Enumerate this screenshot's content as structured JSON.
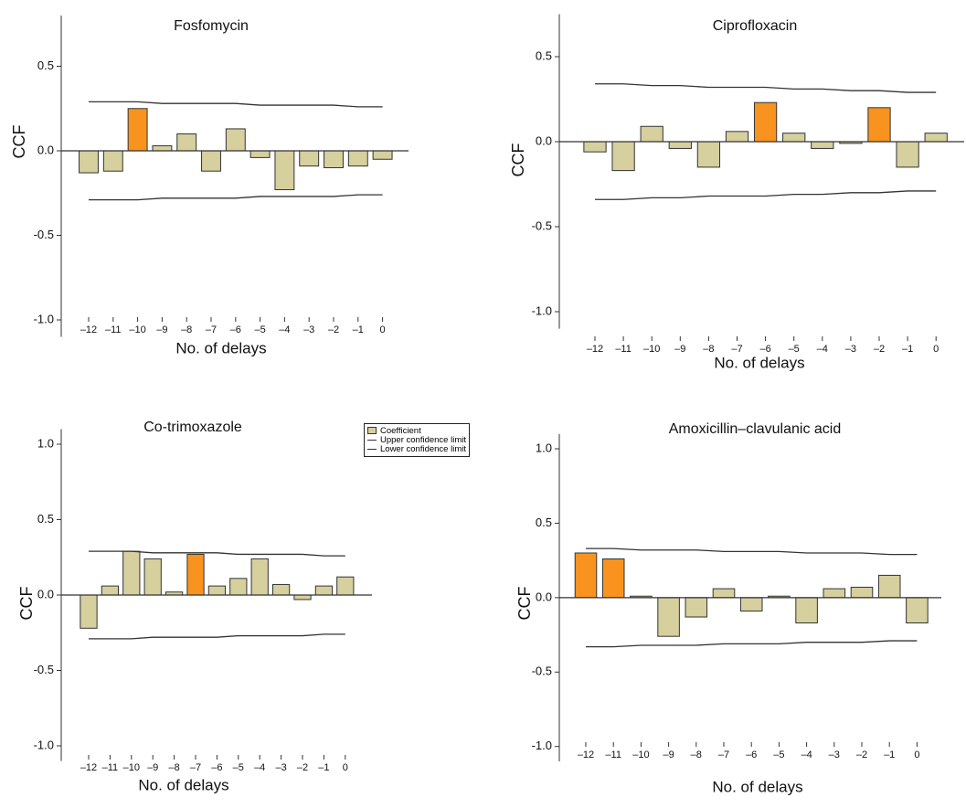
{
  "chart_data": [
    {
      "type": "bar",
      "title": "Fosfomycin",
      "x_label": "No. of delays",
      "y_label": "CCF",
      "categories": [
        "–12",
        "–11",
        "–10",
        "–9",
        "–8",
        "–7",
        "–6",
        "–5",
        "–4",
        "–3",
        "–2",
        "–1",
        "0"
      ],
      "series": [
        {
          "name": "Coefficient",
          "kind": "bar",
          "color": "#d6cf9e",
          "colors": [
            "#d6cf9e",
            "#d6cf9e",
            "#f7931e",
            "#d6cf9e",
            "#d6cf9e",
            "#d6cf9e",
            "#d6cf9e",
            "#d6cf9e",
            "#d6cf9e",
            "#d6cf9e",
            "#d6cf9e",
            "#d6cf9e",
            "#d6cf9e"
          ],
          "values": [
            -0.13,
            -0.12,
            0.25,
            0.03,
            0.1,
            -0.12,
            0.13,
            -0.04,
            -0.23,
            -0.09,
            -0.1,
            -0.09,
            -0.05
          ]
        },
        {
          "name": "Upper confidence limit",
          "kind": "line",
          "color": "#333333",
          "values": [
            0.29,
            0.29,
            0.29,
            0.28,
            0.28,
            0.28,
            0.28,
            0.27,
            0.27,
            0.27,
            0.27,
            0.26,
            0.26
          ]
        },
        {
          "name": "Lower confidence limit",
          "kind": "line",
          "color": "#333333",
          "values": [
            -0.29,
            -0.29,
            -0.29,
            -0.28,
            -0.28,
            -0.28,
            -0.28,
            -0.27,
            -0.27,
            -0.27,
            -0.27,
            -0.26,
            -0.26
          ]
        }
      ],
      "ylim": [
        -1.1,
        0.8
      ],
      "yticks": [
        0.5,
        {
          "value": 0,
          "label": "0.0"
        },
        -0.5,
        {
          "value": -1,
          "label": "-1.0"
        }
      ]
    },
    {
      "type": "bar",
      "title": "Ciprofloxacin",
      "x_label": "No. of delays",
      "y_label": "CCF",
      "categories": [
        "–12",
        "–11",
        "–10",
        "–9",
        "–8",
        "–7",
        "–6",
        "–5",
        "–4",
        "–3",
        "–2",
        "–1",
        "0"
      ],
      "series": [
        {
          "name": "Coefficient",
          "kind": "bar",
          "color": "#d6cf9e",
          "colors": [
            "#d6cf9e",
            "#d6cf9e",
            "#d6cf9e",
            "#d6cf9e",
            "#d6cf9e",
            "#d6cf9e",
            "#f7931e",
            "#d6cf9e",
            "#d6cf9e",
            "#d6cf9e",
            "#f7931e",
            "#d6cf9e",
            "#d6cf9e"
          ],
          "values": [
            -0.06,
            -0.17,
            0.09,
            -0.04,
            -0.15,
            0.06,
            0.23,
            0.05,
            -0.04,
            -0.01,
            0.2,
            -0.15,
            0.05
          ]
        },
        {
          "name": "Upper confidence limit",
          "kind": "line",
          "color": "#333333",
          "values": [
            0.34,
            0.34,
            0.33,
            0.33,
            0.32,
            0.32,
            0.32,
            0.31,
            0.31,
            0.3,
            0.3,
            0.29,
            0.29
          ]
        },
        {
          "name": "Lower confidence limit",
          "kind": "line",
          "color": "#333333",
          "values": [
            -0.34,
            -0.34,
            -0.33,
            -0.33,
            -0.32,
            -0.32,
            -0.32,
            -0.31,
            -0.31,
            -0.3,
            -0.3,
            -0.29,
            -0.29
          ]
        }
      ],
      "ylim": [
        -1.1,
        0.75
      ],
      "yticks": [
        0.5,
        {
          "value": 0,
          "label": "0.0"
        },
        -0.5,
        {
          "value": -1,
          "label": "-1.0"
        }
      ]
    },
    {
      "type": "bar",
      "title": "Co-trimoxazole",
      "x_label": "No. of delays",
      "y_label": "CCF",
      "legend": "upper right",
      "categories": [
        "–12",
        "–11",
        "–10",
        "–9",
        "–8",
        "–7",
        "–6",
        "–5",
        "–4",
        "–3",
        "–2",
        "–1",
        "0"
      ],
      "series": [
        {
          "name": "Coefficient",
          "kind": "bar",
          "color": "#d6cf9e",
          "colors": [
            "#d6cf9e",
            "#d6cf9e",
            "#d6cf9e",
            "#d6cf9e",
            "#d6cf9e",
            "#f7931e",
            "#d6cf9e",
            "#d6cf9e",
            "#d6cf9e",
            "#d6cf9e",
            "#d6cf9e",
            "#d6cf9e",
            "#d6cf9e"
          ],
          "values": [
            -0.22,
            0.06,
            0.29,
            0.24,
            0.02,
            0.27,
            0.06,
            0.11,
            0.24,
            0.07,
            -0.03,
            0.06,
            0.12
          ]
        },
        {
          "name": "Upper confidence limit",
          "kind": "line",
          "color": "#333333",
          "values": [
            0.29,
            0.29,
            0.29,
            0.28,
            0.28,
            0.28,
            0.28,
            0.27,
            0.27,
            0.27,
            0.27,
            0.26,
            0.26
          ]
        },
        {
          "name": "Lower confidence limit",
          "kind": "line",
          "color": "#333333",
          "values": [
            -0.29,
            -0.29,
            -0.29,
            -0.28,
            -0.28,
            -0.28,
            -0.28,
            -0.27,
            -0.27,
            -0.27,
            -0.27,
            -0.26,
            -0.26
          ]
        }
      ],
      "ylim": [
        -1.1,
        1.1
      ],
      "yticks": [
        {
          "value": 1,
          "label": "1.0"
        },
        0.5,
        {
          "value": 0,
          "label": "0.0"
        },
        -0.5,
        {
          "value": -1,
          "label": "-1.0"
        }
      ]
    },
    {
      "type": "bar",
      "title": "Amoxicillin–clavulanic acid",
      "x_label": "No. of delays",
      "y_label": "CCF",
      "categories": [
        "–12",
        "–11",
        "–10",
        "–9",
        "–8",
        "–7",
        "–6",
        "–5",
        "–4",
        "–3",
        "–2",
        "–1",
        "0"
      ],
      "series": [
        {
          "name": "Coefficient",
          "kind": "bar",
          "color": "#d6cf9e",
          "colors": [
            "#f7931e",
            "#f7931e",
            "#d6cf9e",
            "#d6cf9e",
            "#d6cf9e",
            "#d6cf9e",
            "#d6cf9e",
            "#d6cf9e",
            "#d6cf9e",
            "#d6cf9e",
            "#d6cf9e",
            "#d6cf9e",
            "#d6cf9e"
          ],
          "values": [
            0.3,
            0.26,
            0.01,
            -0.26,
            -0.13,
            0.06,
            -0.09,
            0.01,
            -0.17,
            0.06,
            0.07,
            0.15,
            -0.17
          ]
        },
        {
          "name": "Upper confidence limit",
          "kind": "line",
          "color": "#333333",
          "values": [
            0.33,
            0.33,
            0.32,
            0.32,
            0.32,
            0.31,
            0.31,
            0.31,
            0.3,
            0.3,
            0.3,
            0.29,
            0.29
          ]
        },
        {
          "name": "Lower confidence limit",
          "kind": "line",
          "color": "#333333",
          "values": [
            -0.33,
            -0.33,
            -0.32,
            -0.32,
            -0.32,
            -0.31,
            -0.31,
            -0.31,
            -0.3,
            -0.3,
            -0.3,
            -0.29,
            -0.29
          ]
        }
      ],
      "ylim": [
        -1.1,
        1.1
      ],
      "yticks": [
        {
          "value": 1,
          "label": "1.0"
        },
        0.5,
        {
          "value": 0,
          "label": "0.0"
        },
        -0.5,
        {
          "value": -1,
          "label": "-1.0"
        }
      ]
    }
  ]
}
